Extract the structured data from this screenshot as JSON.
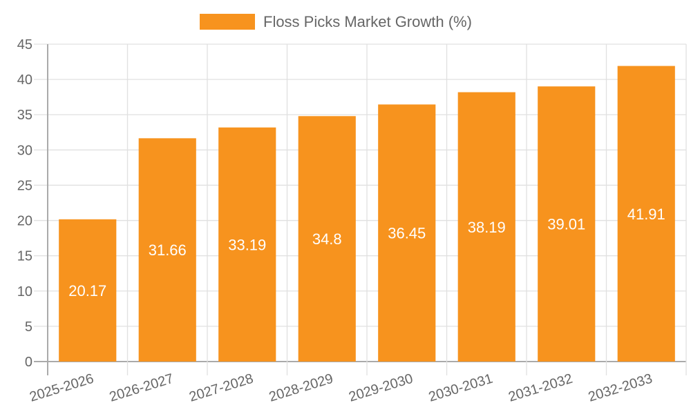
{
  "chart_data": {
    "type": "bar",
    "title": "",
    "legend": [
      {
        "label": "Floss Picks Market Growth (%)",
        "color": "#f7931e"
      }
    ],
    "legend_position": "top",
    "categories": [
      "2025-2026",
      "2026-2027",
      "2027-2028",
      "2028-2029",
      "2029-2030",
      "2030-2031",
      "2031-2032",
      "2032-2033"
    ],
    "series": [
      {
        "name": "Floss Picks Market Growth (%)",
        "values": [
          20.17,
          31.66,
          33.19,
          34.8,
          36.45,
          38.19,
          39.01,
          41.91
        ],
        "color": "#f7931e"
      }
    ],
    "xlabel": "",
    "ylabel": "",
    "ylim": [
      0,
      45
    ],
    "yticks": [
      0,
      5,
      10,
      15,
      20,
      25,
      30,
      35,
      40,
      45
    ],
    "grid": true,
    "data_labels": true
  }
}
